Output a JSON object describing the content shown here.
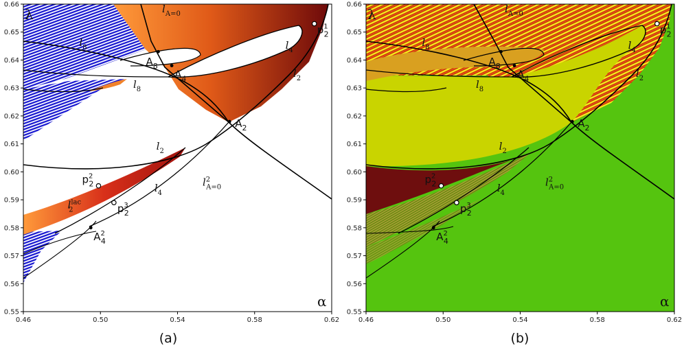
{
  "chart_data": {
    "type": "heatmap",
    "description_units": "parameter plane (alpha, lambda)",
    "xlim": [
      0.46,
      0.62
    ],
    "ylim": [
      0.55,
      0.66
    ],
    "xticks": [
      "0.46",
      "0.50",
      "0.54",
      "0.58",
      "0.62"
    ],
    "yticks": [
      "0.55",
      "0.56",
      "0.57",
      "0.58",
      "0.59",
      "0.60",
      "0.61",
      "0.62",
      "0.63",
      "0.64",
      "0.65",
      "0.66"
    ],
    "xlabel": "α",
    "ylabel": "λ",
    "colors": {
      "blue": "#1515d0",
      "orange": "#f0822a",
      "dark_red": "#7a0c0c",
      "red": "#c8200f",
      "green": "#55c40f",
      "yellow": "#c9d400",
      "dark_maroon": "#6e0e0e",
      "bright_yellow": "#f3ef1a"
    },
    "panels": [
      {
        "caption": "(a)",
        "curve_labels": [
          {
            "name": "l_A=0",
            "text": "l",
            "sub": "A=0",
            "x": 0.532,
            "y": 0.657
          },
          {
            "name": "l_4_upper",
            "text": "l",
            "sub": "4",
            "x": 0.596,
            "y": 0.644
          },
          {
            "name": "l_2_upper",
            "text": "l",
            "sub": "2",
            "x": 0.6,
            "y": 0.634
          },
          {
            "name": "l_8_upper",
            "text": "l",
            "sub": "8",
            "x": 0.489,
            "y": 0.645
          },
          {
            "name": "l_8_lower",
            "text": "l",
            "sub": "8",
            "x": 0.517,
            "y": 0.63
          },
          {
            "name": "l_2_mid",
            "text": "l",
            "sub": "2",
            "x": 0.529,
            "y": 0.608
          },
          {
            "name": "l_4_lower",
            "text": "l",
            "sub": "4",
            "x": 0.528,
            "y": 0.593
          },
          {
            "name": "l_A=0_2",
            "text": "l",
            "sub": "A=0",
            "sup": "2",
            "x": 0.553,
            "y": 0.595
          },
          {
            "name": "l_lac",
            "text": "l",
            "sub": "2",
            "sup": "lac",
            "x": 0.483,
            "y": 0.587
          }
        ],
        "points": [
          {
            "name": "A_8",
            "text": "A",
            "sub": "8",
            "x": 0.53,
            "y": 0.643
          },
          {
            "name": "A_4",
            "text": "A",
            "sub": "4",
            "x": 0.537,
            "y": 0.638
          },
          {
            "name": "A_2",
            "text": "A",
            "sub": "2",
            "x": 0.567,
            "y": 0.618
          },
          {
            "name": "A_4^2",
            "text": "A",
            "sub": "4",
            "sup": "2",
            "x": 0.495,
            "y": 0.58
          },
          {
            "name": "p_2^1",
            "text": "p",
            "sub": "2",
            "sup": "1",
            "x": 0.611,
            "y": 0.653
          },
          {
            "name": "p_2^2",
            "text": "p",
            "sub": "2",
            "sup": "2",
            "x": 0.499,
            "y": 0.595
          },
          {
            "name": "p_2^3",
            "text": "p",
            "sub": "2",
            "sup": "3",
            "x": 0.507,
            "y": 0.589
          }
        ]
      },
      {
        "caption": "(b)",
        "curve_labels": [
          {
            "name": "l_A=0",
            "text": "l",
            "sub": "A=0",
            "x": 0.532,
            "y": 0.657
          },
          {
            "name": "l_4_upper",
            "text": "l",
            "sub": "4",
            "x": 0.596,
            "y": 0.644
          },
          {
            "name": "l_2_upper",
            "text": "l",
            "sub": "2",
            "x": 0.6,
            "y": 0.634
          },
          {
            "name": "l_8_upper",
            "text": "l",
            "sub": "8",
            "x": 0.489,
            "y": 0.645
          },
          {
            "name": "l_8_lower",
            "text": "l",
            "sub": "8",
            "x": 0.517,
            "y": 0.63
          },
          {
            "name": "l_2_mid",
            "text": "l",
            "sub": "2",
            "x": 0.529,
            "y": 0.608
          },
          {
            "name": "l_4_lower",
            "text": "l",
            "sub": "4",
            "x": 0.528,
            "y": 0.593
          },
          {
            "name": "l_A=0_2",
            "text": "l",
            "sub": "A=0",
            "sup": "2",
            "x": 0.553,
            "y": 0.595
          }
        ],
        "points": [
          {
            "name": "A_8",
            "text": "A",
            "sub": "8",
            "x": 0.53,
            "y": 0.643
          },
          {
            "name": "A_4",
            "text": "A",
            "sub": "4",
            "x": 0.537,
            "y": 0.638
          },
          {
            "name": "A_2",
            "text": "A",
            "sub": "2",
            "x": 0.567,
            "y": 0.618
          },
          {
            "name": "A_4^2",
            "text": "A",
            "sub": "4",
            "sup": "2",
            "x": 0.495,
            "y": 0.58
          },
          {
            "name": "p_2^1",
            "text": "p",
            "sub": "2",
            "sup": "1",
            "x": 0.611,
            "y": 0.653
          },
          {
            "name": "p_2^2",
            "text": "p",
            "sub": "2",
            "sup": "2",
            "x": 0.499,
            "y": 0.595
          },
          {
            "name": "p_2^3",
            "text": "p",
            "sub": "2",
            "sup": "3",
            "x": 0.507,
            "y": 0.589
          }
        ]
      }
    ]
  }
}
